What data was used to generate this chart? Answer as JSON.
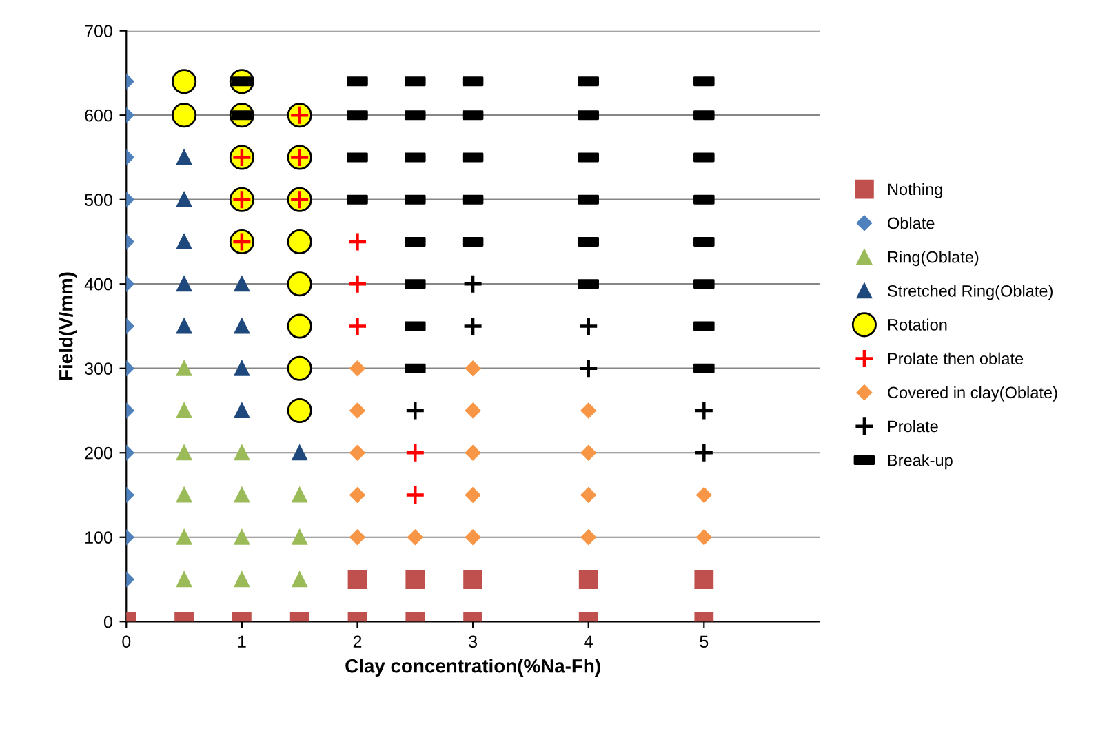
{
  "chart_data": {
    "type": "scatter",
    "xlabel": "Clay concentration(%Na-Fh)",
    "ylabel": "Field(V/mm)",
    "xlim": [
      0,
      6
    ],
    "xticks": [
      0,
      1,
      2,
      3,
      4,
      5
    ],
    "ylim": [
      0,
      700
    ],
    "yticks": [
      0,
      100,
      200,
      300,
      400,
      500,
      600,
      700
    ],
    "grid": "y",
    "legend": "right",
    "series": [
      {
        "name": "Nothing",
        "color": "#c0504d",
        "marker": "square",
        "x": [
          0,
          0.5,
          1,
          1.5,
          2,
          2.5,
          3,
          4,
          5,
          2,
          2.5,
          3,
          4,
          5
        ],
        "values": [
          0,
          0,
          0,
          0,
          0,
          0,
          0,
          0,
          0,
          50,
          50,
          50,
          50,
          50
        ]
      },
      {
        "name": "Oblate",
        "color": "#4f81bd",
        "marker": "diamond",
        "x": [
          0,
          0,
          0,
          0,
          0,
          0,
          0,
          0,
          0,
          0,
          0,
          0,
          0
        ],
        "values": [
          50,
          100,
          150,
          200,
          250,
          300,
          350,
          400,
          450,
          500,
          550,
          600,
          640
        ]
      },
      {
        "name": "Ring(Oblate)",
        "color": "#9bbb59",
        "marker": "triangle",
        "x": [
          0.5,
          0.5,
          0.5,
          0.5,
          0.5,
          0.5,
          1,
          1,
          1,
          1,
          1.5,
          1.5,
          1.5
        ],
        "values": [
          50,
          100,
          150,
          200,
          250,
          300,
          50,
          100,
          150,
          200,
          50,
          100,
          150
        ]
      },
      {
        "name": "Stretched Ring(Oblate)",
        "color": "#1f497d",
        "marker": "triangle",
        "x": [
          0.5,
          0.5,
          0.5,
          0.5,
          0.5,
          1,
          1,
          1,
          1,
          1.5
        ],
        "values": [
          350,
          400,
          450,
          500,
          550,
          250,
          300,
          350,
          400,
          200
        ]
      },
      {
        "name": "Rotation",
        "color": "#ffff00",
        "marker": "circle",
        "x": [
          0.5,
          0.5,
          1,
          1,
          1,
          1,
          1,
          1.5,
          1.5,
          1.5,
          1.5,
          1.5,
          1.5,
          1.5,
          1.5
        ],
        "values": [
          600,
          640,
          450,
          500,
          550,
          600,
          640,
          250,
          300,
          350,
          400,
          450,
          500,
          550,
          600
        ]
      },
      {
        "name": "Prolate then oblate",
        "color": "#ff0000",
        "marker": "cross",
        "x": [
          1,
          1,
          1,
          1.5,
          1.5,
          1.5,
          2,
          2,
          2,
          2.5,
          2.5
        ],
        "values": [
          450,
          500,
          550,
          500,
          550,
          600,
          350,
          400,
          450,
          150,
          200
        ]
      },
      {
        "name": "Covered in clay(Oblate)",
        "color": "#f79646",
        "marker": "diamond",
        "x": [
          2,
          2,
          2,
          2,
          2,
          2.5,
          3,
          3,
          3,
          3,
          3,
          4,
          4,
          4,
          4,
          5,
          5
        ],
        "values": [
          100,
          150,
          200,
          250,
          300,
          100,
          100,
          150,
          200,
          250,
          300,
          100,
          150,
          200,
          250,
          100,
          150
        ]
      },
      {
        "name": "Prolate",
        "color": "#000000",
        "marker": "cross",
        "x": [
          2.5,
          3,
          3,
          4,
          4,
          5,
          5
        ],
        "values": [
          250,
          350,
          400,
          300,
          350,
          200,
          250
        ]
      },
      {
        "name": "Break-up",
        "color": "#000000",
        "x": [
          1,
          1,
          2,
          2,
          2,
          2,
          2.5,
          2.5,
          2.5,
          2.5,
          2.5,
          2.5,
          2.5,
          2.5,
          3,
          3,
          3,
          3,
          3,
          4,
          4,
          4,
          4,
          4,
          4,
          5,
          5,
          5,
          5,
          5,
          5,
          5,
          5
        ],
        "values": [
          600,
          640,
          500,
          550,
          600,
          640,
          300,
          350,
          400,
          450,
          500,
          550,
          600,
          640,
          450,
          500,
          550,
          600,
          640,
          400,
          450,
          500,
          550,
          600,
          640,
          300,
          350,
          400,
          450,
          500,
          550,
          600,
          640
        ]
      }
    ]
  }
}
